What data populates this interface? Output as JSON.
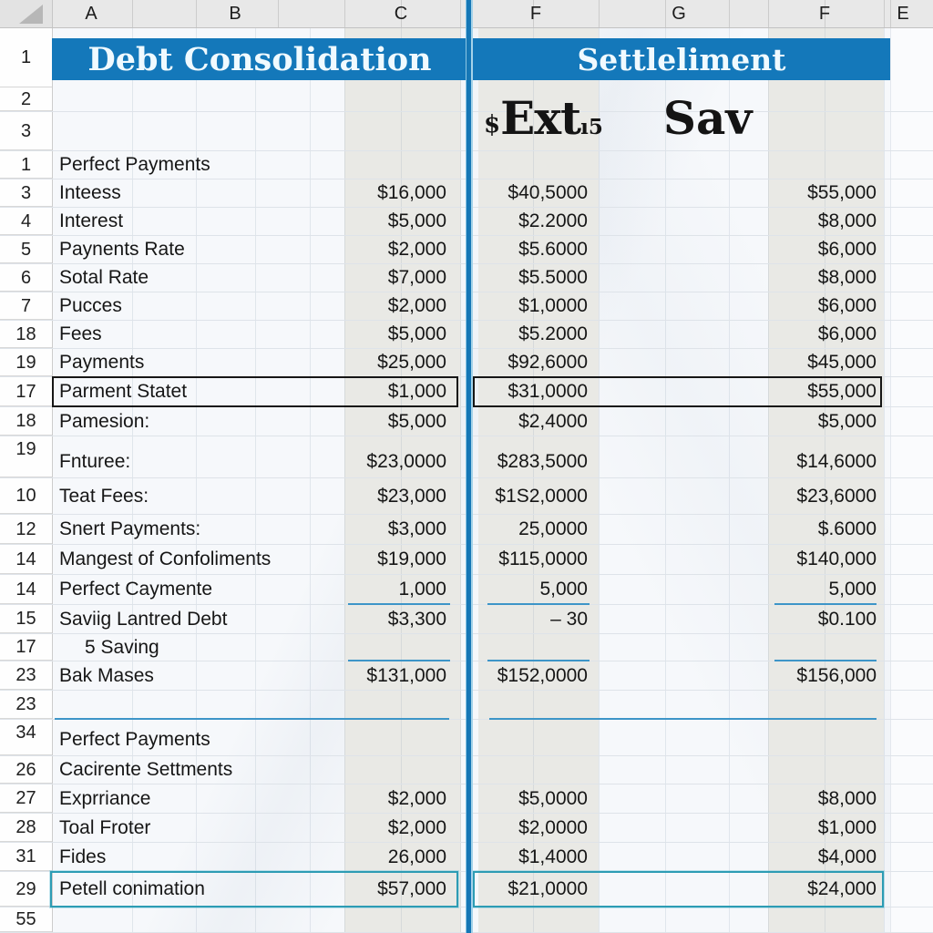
{
  "title_row_num": "1",
  "column_headers": {
    "left": [
      "A",
      "B",
      "C"
    ],
    "right": [
      "F",
      "G",
      "F",
      "E"
    ]
  },
  "titles": {
    "left": "Debt Consolidation",
    "right": "Settleliment"
  },
  "subheader": {
    "currency": "$",
    "main": "Ext",
    "sub": "ı5",
    "second": "Sav"
  },
  "rows": [
    {
      "num": "2"
    },
    {
      "num": "3"
    },
    {
      "num": "1",
      "label": "Perfect Payments"
    },
    {
      "num": "3",
      "label": "Inteess",
      "c": "$16,000",
      "f1": "$40,5000",
      "f2": "$55,000"
    },
    {
      "num": "4",
      "label": "Interest",
      "c": "$5,000",
      "f1": "$2.2000",
      "f2": "$8,000"
    },
    {
      "num": "5",
      "label": "Paynents Rate",
      "c": "$2,000",
      "f1": "$5.6000",
      "f2": "$6,000"
    },
    {
      "num": "6",
      "label": "Sotal Rate",
      "c": "$7,000",
      "f1": "$5.5000",
      "f2": "$8,000"
    },
    {
      "num": "7",
      "label": "Pucces",
      "c": "$2,000",
      "f1": "$1,0000",
      "f2": "$6,000"
    },
    {
      "num": "18",
      "label": "Fees",
      "c": "$5,000",
      "f1": "$5.2000",
      "f2": "$6,000"
    },
    {
      "num": "19",
      "label": "Payments",
      "c": "$25,000",
      "f1": "$92,6000",
      "f2": "$45,000"
    },
    {
      "num": "17",
      "label": "Parment Statet",
      "c": "$1,000",
      "f1": "$31,0000",
      "f2": "$55,000",
      "selected": "black"
    },
    {
      "num": "18",
      "label": "Pamesion:",
      "c": "$5,000",
      "f1": "$2,4000",
      "f2": "$5,000"
    },
    {
      "num": "19",
      "label": "Fnturee:",
      "c": "$23,0000",
      "f1": "$283,5000",
      "f2": "$14,6000"
    },
    {
      "num": "10",
      "label": "Teat Fees:",
      "c": "$23,000",
      "f1": "$1S2,0000",
      "f2": "$23,6000"
    },
    {
      "num": "12",
      "label": "Snert Payments:",
      "c": "$3,000",
      "f1": "25,0000",
      "f2": "$.6000"
    },
    {
      "num": "14",
      "label": "Mangest of Confoliments",
      "c": "$19,000",
      "f1": "$115,0000",
      "f2": "$140,000"
    },
    {
      "num": "14",
      "label": "Perfect Caymente",
      "c": "1,000",
      "f1": "5,000",
      "f2": "5,000",
      "underline": [
        "c",
        "f1",
        "f2"
      ]
    },
    {
      "num": "15",
      "label": "Saviig Lantred Debt",
      "c": "$3,300",
      "f1": "–  30",
      "f2": "$0.100"
    },
    {
      "num": "17",
      "label": "5 Saving",
      "underline": [
        "c",
        "f1",
        "f2"
      ]
    },
    {
      "num": "23",
      "label": "Bak Mases",
      "c": "$131,000",
      "f1": "$152,0000",
      "f2": "$156,000"
    },
    {
      "num": "23",
      "underline": [
        "long"
      ]
    },
    {
      "num": "34",
      "label": "Perfect Payments"
    },
    {
      "num": "26",
      "label": "Cacirente Settments"
    },
    {
      "num": "27",
      "label": "Exprriance",
      "c": "$2,000",
      "f1": "$5,0000",
      "f2": "$8,000"
    },
    {
      "num": "28",
      "label": "Toal Froter",
      "c": "$2,000",
      "f1": "$2,0000",
      "f2": "$1,000"
    },
    {
      "num": "31",
      "label": "Fides",
      "c": "26,000",
      "f1": "$1,4000",
      "f2": "$4,000"
    },
    {
      "num": "29",
      "label": "Petell conimation",
      "c": "$57,000",
      "f1": "$21,0000",
      "f2": "$24,000",
      "selected": "teal"
    },
    {
      "num": "55"
    }
  ],
  "colors": {
    "header_blue": "#1478ba",
    "band_gray": "#e9e9e5",
    "underline_blue": "#3d95c8",
    "selection_black": "#161616",
    "selection_teal": "#2d9cb4"
  }
}
